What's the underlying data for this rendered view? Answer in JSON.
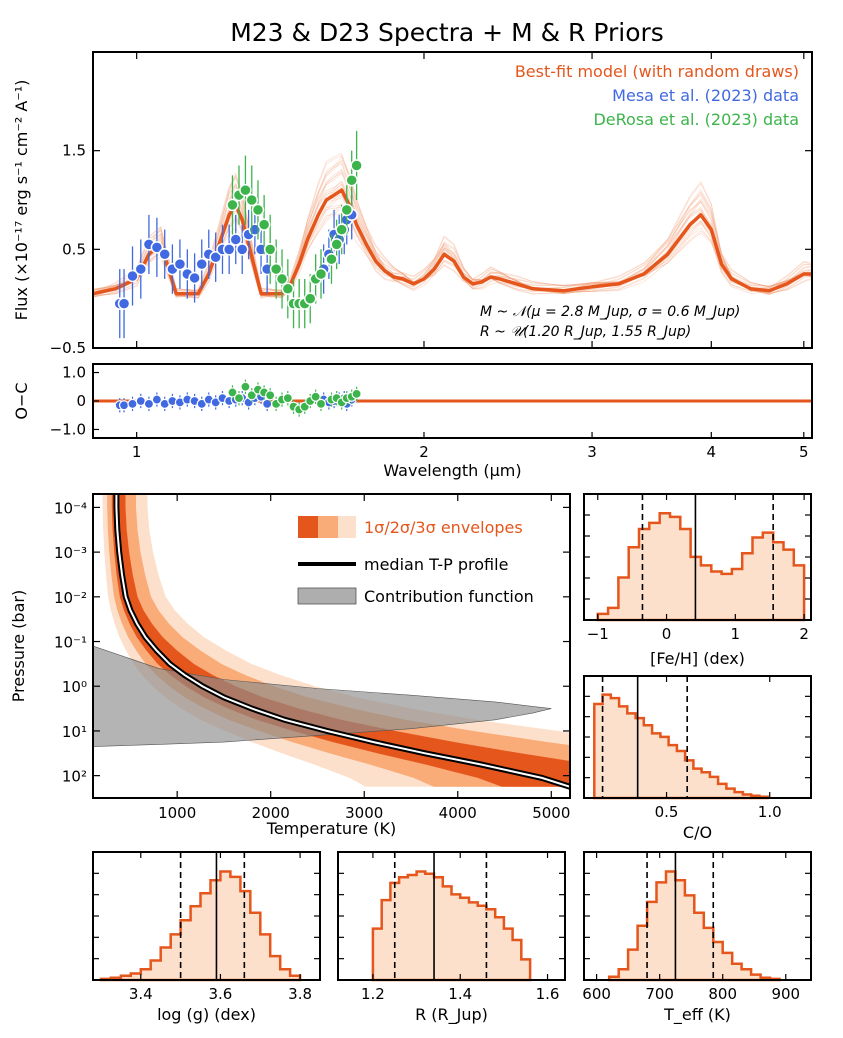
{
  "title": "M23 & D23 Spectra + M & R Priors",
  "chart_data": [
    {
      "id": "spectrum",
      "type": "line",
      "xscale": "log",
      "xlim": [
        0.9,
        5.1
      ],
      "ylim": [
        -0.5,
        2.5
      ],
      "ylabel": "Flux (×10⁻¹⁷ erg s⁻¹ cm⁻² A⁻¹)",
      "yticks": [
        -0.5,
        0.5,
        1.5
      ],
      "ytick_labels": [
        "−0.5",
        "0.5",
        "1.5"
      ],
      "legend": [
        {
          "label": "Best-fit model (with random draws)",
          "color": "#e5561d"
        },
        {
          "label": "Mesa et al. (2023) data",
          "color": "#4169e1"
        },
        {
          "label": "DeRosa et al. (2023) data",
          "color": "#3cb44b"
        }
      ],
      "prior_lines": [
        "M ~ 𝒩(μ = 2.8 M_Jup, σ = 0.6 M_Jup)",
        "R ~ 𝒰(1.20 R_Jup, 1.55 R_Jup)"
      ],
      "model": {
        "x": [
          0.9,
          0.95,
          1.0,
          1.03,
          1.06,
          1.08,
          1.1,
          1.13,
          1.16,
          1.19,
          1.22,
          1.25,
          1.27,
          1.29,
          1.31,
          1.33,
          1.35,
          1.38,
          1.42,
          1.45,
          1.48,
          1.51,
          1.55,
          1.58,
          1.61,
          1.64,
          1.67,
          1.7,
          1.74,
          1.78,
          1.82,
          1.86,
          1.9,
          1.95,
          2.0,
          2.05,
          2.1,
          2.15,
          2.2,
          2.25,
          2.3,
          2.35,
          2.4,
          2.5,
          2.6,
          2.8,
          3.0,
          3.2,
          3.4,
          3.6,
          3.8,
          3.9,
          4.0,
          4.1,
          4.2,
          4.4,
          4.6,
          4.8,
          5.0,
          5.1
        ],
        "y": [
          0.05,
          0.1,
          0.2,
          0.45,
          0.55,
          0.3,
          0.05,
          0.05,
          0.05,
          0.25,
          0.55,
          0.85,
          0.95,
          0.8,
          0.55,
          0.3,
          0.05,
          0.05,
          0.05,
          0.15,
          0.35,
          0.6,
          0.85,
          1.0,
          1.05,
          1.1,
          0.95,
          0.75,
          0.55,
          0.38,
          0.28,
          0.22,
          0.2,
          0.15,
          0.2,
          0.3,
          0.45,
          0.38,
          0.22,
          0.15,
          0.17,
          0.22,
          0.2,
          0.15,
          0.1,
          0.08,
          0.12,
          0.15,
          0.25,
          0.45,
          0.75,
          0.85,
          0.7,
          0.35,
          0.2,
          0.1,
          0.08,
          0.15,
          0.25,
          0.25
        ]
      },
      "mesa_data": {
        "x": [
          0.96,
          0.97,
          0.99,
          1.01,
          1.03,
          1.05,
          1.07,
          1.09,
          1.11,
          1.13,
          1.15,
          1.17,
          1.19,
          1.21,
          1.23,
          1.25,
          1.27,
          1.29,
          1.31,
          1.33,
          1.35,
          1.37,
          1.57,
          1.59,
          1.61,
          1.63,
          1.65,
          1.66,
          1.68
        ],
        "y": [
          -0.05,
          -0.05,
          0.23,
          0.3,
          0.55,
          0.52,
          0.45,
          0.3,
          0.35,
          0.25,
          0.21,
          0.35,
          0.45,
          0.42,
          0.5,
          0.5,
          0.6,
          0.5,
          0.65,
          0.7,
          0.5,
          0.3,
          0.3,
          0.45,
          0.65,
          0.6,
          0.7,
          0.8,
          0.85
        ],
        "err": [
          0.35,
          0.35,
          0.3,
          0.3,
          0.3,
          0.3,
          0.25,
          0.25,
          0.25,
          0.25,
          0.25,
          0.25,
          0.25,
          0.25,
          0.25,
          0.25,
          0.25,
          0.25,
          0.25,
          0.25,
          0.25,
          0.25,
          0.25,
          0.25,
          0.25,
          0.25,
          0.25,
          0.25,
          0.25
        ]
      },
      "derosa_data": {
        "x": [
          1.26,
          1.28,
          1.3,
          1.32,
          1.34,
          1.36,
          1.38,
          1.4,
          1.42,
          1.44,
          1.46,
          1.48,
          1.5,
          1.52,
          1.54,
          1.56,
          1.6,
          1.62,
          1.64,
          1.66,
          1.68,
          1.7
        ],
        "y": [
          0.95,
          1.05,
          1.1,
          1.0,
          0.9,
          0.75,
          0.5,
          0.3,
          0.2,
          0.1,
          -0.05,
          -0.05,
          -0.05,
          0.0,
          0.2,
          0.25,
          0.4,
          0.55,
          0.7,
          0.9,
          1.2,
          1.35
        ],
        "err": [
          0.3,
          0.3,
          0.35,
          0.35,
          0.3,
          0.3,
          0.35,
          0.3,
          0.3,
          0.3,
          0.25,
          0.25,
          0.25,
          0.25,
          0.25,
          0.25,
          0.25,
          0.25,
          0.25,
          0.25,
          0.3,
          0.35
        ]
      }
    },
    {
      "id": "residuals",
      "type": "scatter",
      "xscale": "log",
      "xlim": [
        0.9,
        5.1
      ],
      "ylim": [
        -1.3,
        1.3
      ],
      "ylabel": "O−C",
      "xlabel": "Wavelength (μm)",
      "yticks": [
        -1.0,
        0.0,
        1.0
      ],
      "ytick_labels": [
        "−1.0",
        "0",
        "1.0"
      ],
      "xticks": [
        1,
        2,
        3,
        4,
        5
      ],
      "xtick_labels": [
        "1",
        "2",
        "3",
        "4",
        "5"
      ],
      "mesa_resid": [
        -0.15,
        -0.15,
        -0.1,
        0.0,
        -0.1,
        0.05,
        -0.1,
        0.0,
        -0.05,
        0.05,
        0.0,
        -0.1,
        0.05,
        -0.05,
        0.1,
        0.0,
        0.05,
        0.1,
        -0.05,
        0.1,
        0.15,
        -0.1,
        0.05,
        -0.05,
        0.0,
        0.05,
        0.1,
        -0.1,
        0.05
      ],
      "derosa_resid": [
        0.3,
        0.1,
        0.5,
        0.2,
        0.4,
        0.3,
        0.2,
        -0.1,
        0.05,
        0.1,
        -0.2,
        -0.3,
        -0.2,
        0.0,
        0.15,
        -0.1,
        0.05,
        0.1,
        -0.05,
        0.1,
        0.15,
        0.25
      ]
    },
    {
      "id": "tp_profile",
      "type": "area",
      "xlim": [
        100,
        5200
      ],
      "ylabel": "Pressure (bar)",
      "xlabel": "Temperature (K)",
      "xticks": [
        1000,
        2000,
        3000,
        4000,
        5000
      ],
      "xtick_labels": [
        "1000",
        "2000",
        "3000",
        "4000",
        "5000"
      ],
      "ytick_labels": [
        "10⁻⁴",
        "10⁻³",
        "10⁻²",
        "10⁻¹",
        "10⁰",
        "10¹",
        "10²"
      ],
      "legend": [
        {
          "label": "1σ/2σ/3σ envelopes"
        },
        {
          "label": "median T-P profile"
        },
        {
          "label": "Contribution function"
        }
      ],
      "median_T": [
        350,
        350,
        360,
        380,
        410,
        450,
        500,
        570,
        660,
        780,
        920,
        1080,
        1270,
        1500,
        1800,
        2150,
        2600,
        3100,
        3650,
        4250,
        4900,
        5200
      ],
      "logP": [
        -4.4,
        -4.0,
        -3.5,
        -3.0,
        -2.5,
        -2.0,
        -1.7,
        -1.4,
        -1.1,
        -0.8,
        -0.5,
        -0.25,
        0.0,
        0.25,
        0.5,
        0.75,
        1.0,
        1.25,
        1.5,
        1.75,
        2.05,
        2.25
      ]
    },
    {
      "id": "hist_feh",
      "type": "bar",
      "xlabel": "[Fe/H] (dex)",
      "xlim": [
        -1.2,
        2.1
      ],
      "xticks": [
        -1,
        0,
        1,
        2
      ],
      "xtick_labels": [
        "−1",
        "0",
        "1",
        "2"
      ],
      "bins": [
        -1.0,
        -0.85,
        -0.7,
        -0.55,
        -0.4,
        -0.25,
        -0.1,
        0.05,
        0.2,
        0.35,
        0.5,
        0.65,
        0.8,
        0.95,
        1.1,
        1.25,
        1.4,
        1.55,
        1.7,
        1.85,
        2.0
      ],
      "counts": [
        5,
        10,
        35,
        60,
        75,
        80,
        88,
        85,
        75,
        52,
        45,
        40,
        38,
        42,
        55,
        68,
        72,
        64,
        58,
        45
      ],
      "median": 0.42,
      "lo": -0.35,
      "hi": 1.55
    },
    {
      "id": "hist_co",
      "type": "bar",
      "xlabel": "C/O",
      "xlim": [
        0.1,
        1.2
      ],
      "xticks": [
        0.5,
        1.0
      ],
      "xtick_labels": [
        "0.5",
        "1.0"
      ],
      "bins": [
        0.15,
        0.19,
        0.23,
        0.27,
        0.31,
        0.35,
        0.39,
        0.43,
        0.47,
        0.51,
        0.55,
        0.59,
        0.63,
        0.67,
        0.71,
        0.75,
        0.79,
        0.83,
        0.87,
        0.91,
        0.95,
        0.99
      ],
      "counts": [
        80,
        88,
        85,
        78,
        72,
        68,
        62,
        55,
        52,
        45,
        40,
        32,
        25,
        22,
        18,
        12,
        8,
        5,
        3,
        2,
        1
      ],
      "median": 0.36,
      "lo": 0.19,
      "hi": 0.6
    },
    {
      "id": "hist_logg",
      "type": "bar",
      "xlabel": "log (g) (dex)",
      "xlim": [
        3.28,
        3.85
      ],
      "xticks": [
        3.4,
        3.6,
        3.8
      ],
      "xtick_labels": [
        "3.4",
        "3.6",
        "3.8"
      ],
      "bins": [
        3.3,
        3.325,
        3.35,
        3.375,
        3.4,
        3.425,
        3.45,
        3.475,
        3.5,
        3.525,
        3.55,
        3.575,
        3.6,
        3.625,
        3.65,
        3.675,
        3.7,
        3.725,
        3.75,
        3.775,
        3.8
      ],
      "counts": [
        1,
        2,
        4,
        6,
        10,
        18,
        30,
        42,
        55,
        68,
        80,
        92,
        100,
        95,
        82,
        62,
        42,
        22,
        10,
        4
      ],
      "median": 3.59,
      "lo": 3.5,
      "hi": 3.66
    },
    {
      "id": "hist_r",
      "type": "bar",
      "xlabel": "R (R_Jup)",
      "xlim": [
        1.12,
        1.64
      ],
      "xticks": [
        1.2,
        1.4,
        1.6
      ],
      "xtick_labels": [
        "1.2",
        "1.4",
        "1.6"
      ],
      "bins": [
        1.2,
        1.22,
        1.24,
        1.26,
        1.28,
        1.3,
        1.32,
        1.34,
        1.36,
        1.38,
        1.4,
        1.42,
        1.44,
        1.46,
        1.48,
        1.5,
        1.52,
        1.54,
        1.56
      ],
      "counts": [
        45,
        70,
        85,
        90,
        92,
        95,
        93,
        90,
        82,
        75,
        72,
        68,
        65,
        62,
        55,
        45,
        35,
        18
      ],
      "median": 1.34,
      "lo": 1.25,
      "hi": 1.46
    },
    {
      "id": "hist_teff",
      "type": "bar",
      "xlabel": "T_eff (K)",
      "xlim": [
        580,
        940
      ],
      "xticks": [
        600,
        700,
        800,
        900
      ],
      "xtick_labels": [
        "600",
        "700",
        "800",
        "900"
      ],
      "bins": [
        620,
        635,
        650,
        665,
        680,
        695,
        710,
        725,
        740,
        755,
        770,
        785,
        800,
        815,
        830,
        845,
        860,
        875,
        890
      ],
      "counts": [
        3,
        10,
        28,
        50,
        72,
        90,
        100,
        92,
        78,
        62,
        48,
        35,
        25,
        15,
        10,
        5,
        2,
        1
      ],
      "median": 725,
      "lo": 680,
      "hi": 785
    }
  ]
}
